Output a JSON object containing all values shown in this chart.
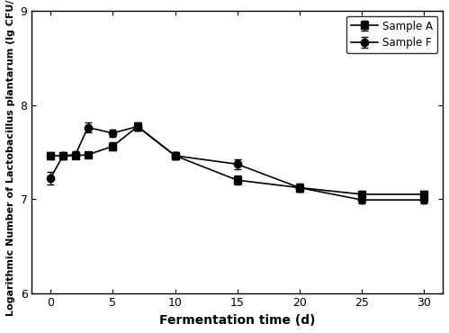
{
  "x": [
    0,
    1,
    2,
    3,
    5,
    7,
    10,
    15,
    20,
    25,
    30
  ],
  "sample_A_y": [
    7.46,
    7.46,
    7.46,
    7.47,
    7.56,
    7.77,
    7.46,
    7.2,
    7.12,
    7.05,
    7.05
  ],
  "sample_A_err": [
    0.04,
    0.03,
    0.03,
    0.03,
    0.04,
    0.04,
    0.04,
    0.05,
    0.04,
    0.04,
    0.04
  ],
  "sample_F_y": [
    7.22,
    7.46,
    7.47,
    7.76,
    7.7,
    7.77,
    7.46,
    7.37,
    7.12,
    6.99,
    6.99
  ],
  "sample_F_err": [
    0.07,
    0.04,
    0.04,
    0.05,
    0.04,
    0.04,
    0.04,
    0.05,
    0.04,
    0.04,
    0.04
  ],
  "xlabel": "Fermentation time (d)",
  "ylabel": "Logarithmic Number of Lactobacillus plantarum (lg CFU/g)",
  "legend_A": "Sample A",
  "legend_F": "Sample F",
  "ylim": [
    6,
    9
  ],
  "yticks": [
    6,
    7,
    8,
    9
  ],
  "xticks": [
    0,
    5,
    10,
    15,
    20,
    25,
    30
  ],
  "line_color": "#000000",
  "marker_A": "s",
  "marker_F": "o",
  "markersize": 6,
  "linewidth": 1.2,
  "capsize": 3,
  "elinewidth": 1.0
}
